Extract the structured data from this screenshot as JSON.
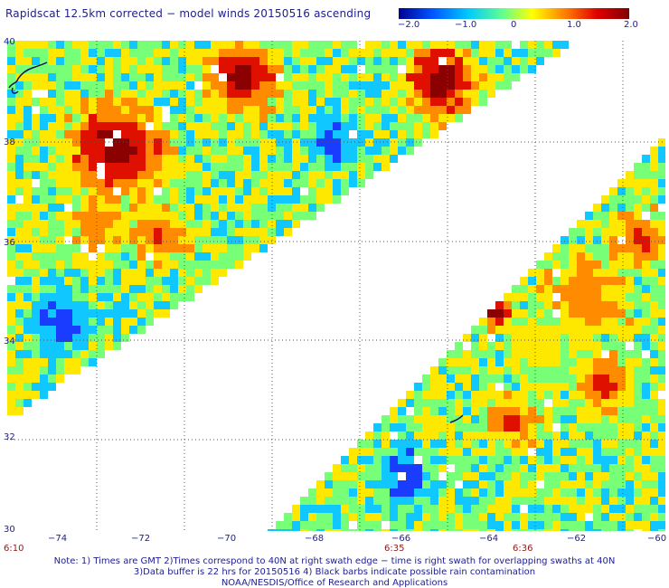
{
  "title": "Rapidscat 12.5km corrected − model winds 20150516 ascending",
  "colorbar": {
    "ticks": [
      "−2.0",
      "−1.0",
      "0",
      "1.0",
      "2.0"
    ],
    "stops": [
      "#000090",
      "#0050ff",
      "#00c8ff",
      "#60ff90",
      "#ffff00",
      "#ff8000",
      "#e00000",
      "#800000"
    ]
  },
  "map": {
    "lon_ticks": [
      "−74",
      "−72",
      "−70",
      "−68",
      "−66",
      "−64",
      "−62",
      "−60"
    ],
    "lat_ticks": [
      "40",
      "38",
      "36",
      "34",
      "32",
      "30"
    ],
    "colors": {
      "deep_blue": "#0000a0",
      "blue": "#1a3cff",
      "cyan": "#10c8ff",
      "green": "#78ff78",
      "yellow": "#ffe800",
      "orange": "#ff8c00",
      "red": "#e01000",
      "maroon": "#8b0000",
      "grid": "#555555",
      "coast": "#101060"
    }
  },
  "times": [
    "6:10",
    "6:35",
    "6:36"
  ],
  "notes": [
    "Note: 1) Times are GMT 2)Times correspond to 40N at right swath edge − time is right swath for overlapping swaths at 40N",
    "3)Data buffer is 22 hrs for 20150516 4) Black barbs indicate possible rain contamination",
    "NOAA/NESDIS/Office of Research and Applications"
  ]
}
